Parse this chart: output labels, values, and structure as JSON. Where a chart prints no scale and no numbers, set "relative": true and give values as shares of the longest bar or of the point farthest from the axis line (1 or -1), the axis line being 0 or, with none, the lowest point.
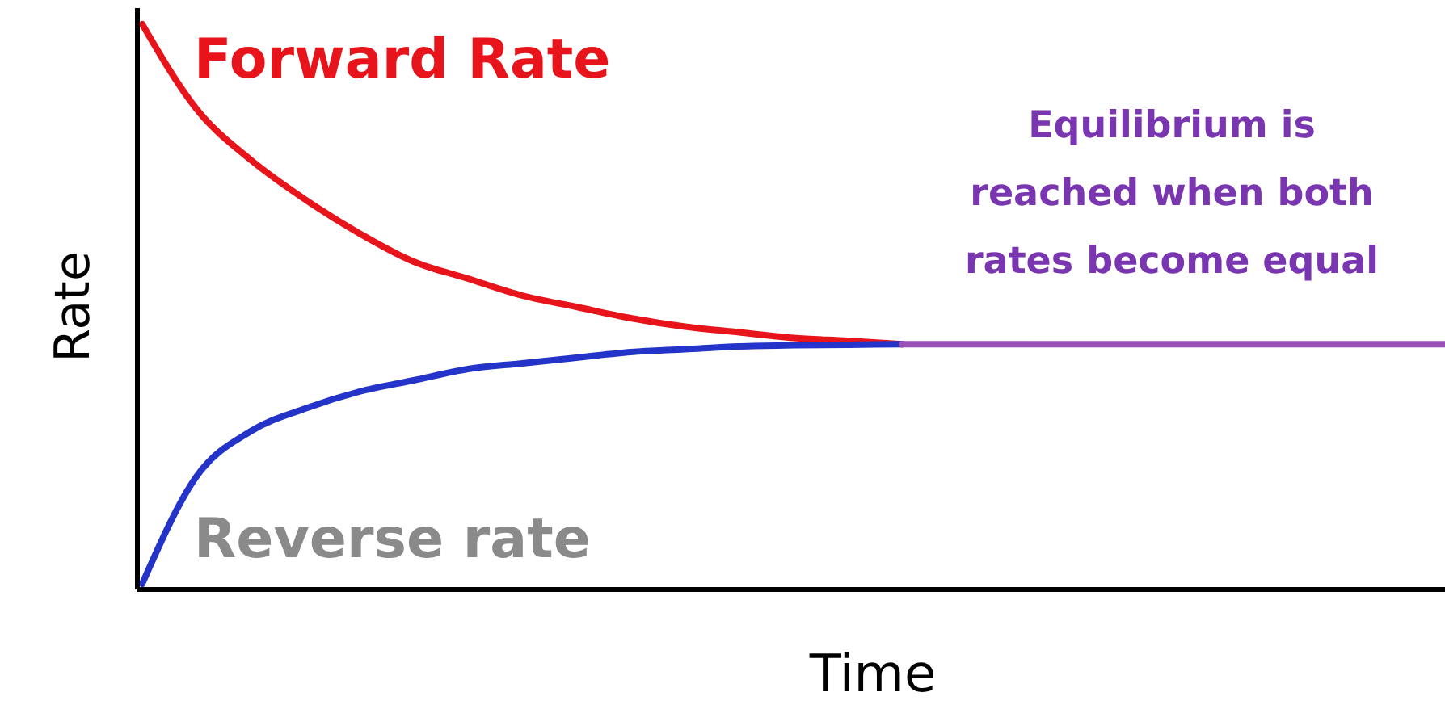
{
  "chart_data": {
    "type": "line",
    "relative": true,
    "xlabel": "Time",
    "ylabel": "Rate",
    "categories": [
      null,
      null,
      null,
      null,
      null,
      null,
      null,
      null,
      null,
      null,
      null,
      null,
      null,
      null,
      null,
      null,
      null,
      null,
      null,
      null,
      null,
      null,
      null,
      null,
      null
    ],
    "series": [
      {
        "name": "Forward Rate",
        "color": "#e8141c",
        "values": [
          1.0,
          0.85,
          0.76,
          0.69,
          0.63,
          0.58,
          0.55,
          0.52,
          0.5,
          0.48,
          0.465,
          0.455,
          0.445,
          0.44,
          0.434,
          null,
          null,
          null,
          null,
          null,
          null,
          null,
          null,
          null,
          null
        ]
      },
      {
        "name": "Reverse rate",
        "color": "#2433c8",
        "values": [
          0.01,
          0.2,
          0.28,
          0.32,
          0.35,
          0.37,
          0.39,
          0.4,
          0.41,
          0.42,
          0.425,
          0.43,
          0.432,
          0.433,
          0.434,
          null,
          null,
          null,
          null,
          null,
          null,
          null,
          null,
          null,
          null
        ]
      },
      {
        "color": "#9b4fb8",
        "values": [
          null,
          null,
          null,
          null,
          null,
          null,
          null,
          null,
          null,
          null,
          null,
          null,
          null,
          null,
          0.434,
          0.434,
          0.434,
          0.434,
          0.434,
          0.434,
          0.434,
          0.434,
          0.434,
          0.434,
          0.434
        ]
      }
    ],
    "annotations": [
      "Equilibrium is reached when both rates become equal"
    ]
  }
}
